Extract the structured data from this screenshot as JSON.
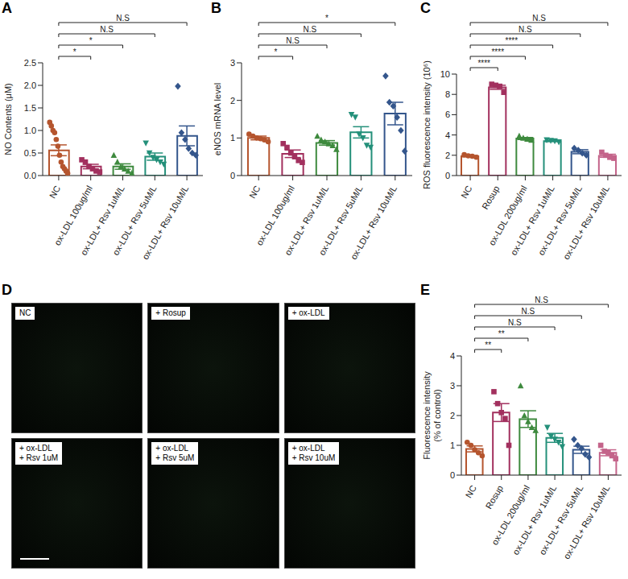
{
  "chart_data": [
    {
      "panel": "A",
      "type": "bar",
      "ylabel": "NO Contents (μM)",
      "categories": [
        "NC",
        "ox-LDL 100ug/ml",
        "ox-LDL+ Rsv 1uM/L",
        "ox-LDL+ Rsv 5uM/L",
        "ox-LDL+ Rsv 10uM/L"
      ],
      "values": [
        0.56,
        0.2,
        0.2,
        0.42,
        0.88
      ],
      "errors": [
        0.12,
        0.05,
        0.06,
        0.08,
        0.22
      ],
      "points": [
        [
          1.18,
          1.1,
          1.0,
          0.95,
          0.8,
          0.65,
          0.45,
          0.3,
          0.2,
          0.15,
          0.1,
          0.05
        ],
        [
          0.35,
          0.3,
          0.2,
          0.15,
          0.1,
          0.08
        ],
        [
          0.45,
          0.3,
          0.2,
          0.15,
          0.1,
          0.05
        ],
        [
          0.72,
          0.5,
          0.4,
          0.35,
          0.3,
          0.25
        ],
        [
          1.98,
          0.95,
          0.8,
          0.6,
          0.5,
          0.45
        ]
      ],
      "colors": [
        "#B5552E",
        "#A2305E",
        "#3E8A3E",
        "#24907A",
        "#34568C"
      ],
      "marker": [
        "circle",
        "square",
        "triangle",
        "triangle-down",
        "diamond"
      ],
      "comparisons": [
        {
          "pair": [
            0,
            1
          ],
          "label": "*"
        },
        {
          "pair": [
            0,
            2
          ],
          "label": "*"
        },
        {
          "pair": [
            0,
            3
          ],
          "label": "N.S"
        },
        {
          "pair": [
            0,
            4
          ],
          "label": "N.S"
        }
      ],
      "ylim": [
        0,
        2.5
      ],
      "yticks": [
        {
          "value": 0,
          "label": "0.0"
        },
        0.5,
        {
          "value": 1,
          "label": "1.0"
        },
        1.5,
        {
          "value": 2,
          "label": "2.0"
        },
        2.5
      ]
    },
    {
      "panel": "B",
      "type": "bar",
      "ylabel": "eNOS mRNA level",
      "categories": [
        "NC",
        "ox-LDL 100ug/ml",
        "ox-LDL+ Rsv 1uM/L",
        "ox-LDL+ Rsv 5uM/L",
        "ox-LDL+ Rsv 10uM/L"
      ],
      "values": [
        1.0,
        0.58,
        0.87,
        1.15,
        1.65
      ],
      "errors": [
        0.05,
        0.1,
        0.06,
        0.15,
        0.3
      ],
      "points": [
        [
          1.1,
          1.05,
          1.0,
          0.98,
          0.95,
          0.9
        ],
        [
          0.85,
          0.75,
          0.6,
          0.5,
          0.4,
          0.35
        ],
        [
          1.05,
          0.95,
          0.9,
          0.85,
          0.8,
          0.7
        ],
        [
          1.62,
          1.55,
          1.1,
          1.0,
          0.8,
          0.75
        ],
        [
          2.65,
          1.95,
          1.85,
          1.55,
          1.2,
          0.65
        ]
      ],
      "colors": [
        "#B5552E",
        "#A2305E",
        "#3E8A3E",
        "#24907A",
        "#34568C"
      ],
      "marker": [
        "circle",
        "square",
        "triangle",
        "triangle-down",
        "diamond"
      ],
      "comparisons": [
        {
          "pair": [
            0,
            1
          ],
          "label": "*"
        },
        {
          "pair": [
            0,
            2
          ],
          "label": "N.S"
        },
        {
          "pair": [
            0,
            3
          ],
          "label": "N.S"
        },
        {
          "pair": [
            0,
            4
          ],
          "label": "*"
        }
      ],
      "ylim": [
        0,
        3
      ],
      "yticks": [
        0,
        1,
        2,
        3
      ]
    },
    {
      "panel": "C",
      "type": "bar",
      "ylabel": "ROS fluorescence intensity (10⁶)",
      "categories": [
        "NC",
        "Rosup",
        "ox-LDL 200ug/ml",
        "ox-LDL+ Rsv 1uM/L",
        "ox-LDL+ Rsv 5uM/L",
        "ox-LDL+ Rsv 10uM/L"
      ],
      "values": [
        1.9,
        8.7,
        3.65,
        3.4,
        2.35,
        1.95
      ],
      "errors": [
        0.06,
        0.2,
        0.1,
        0.05,
        0.2,
        0.15
      ],
      "points": [
        [
          2.05,
          1.95,
          1.9,
          1.8
        ],
        [
          9.0,
          8.9,
          8.8,
          8.2
        ],
        [
          3.9,
          3.7,
          3.6,
          3.5
        ],
        [
          3.5,
          3.45,
          3.4,
          3.3
        ],
        [
          2.7,
          2.5,
          2.2,
          2.0
        ],
        [
          2.3,
          2.0,
          1.8,
          1.7
        ]
      ],
      "colors": [
        "#B5552E",
        "#A2305E",
        "#3E8A3E",
        "#24907A",
        "#34568C",
        "#C4648A"
      ],
      "marker": [
        "circle",
        "square",
        "triangle",
        "triangle-down",
        "diamond",
        "square"
      ],
      "comparisons": [
        {
          "pair": [
            0,
            1
          ],
          "label": "****"
        },
        {
          "pair": [
            0,
            2
          ],
          "label": "****"
        },
        {
          "pair": [
            0,
            3
          ],
          "label": "****"
        },
        {
          "pair": [
            0,
            4
          ],
          "label": "N.S"
        },
        {
          "pair": [
            0,
            5
          ],
          "label": "N.S"
        }
      ],
      "ylim": [
        0,
        10
      ],
      "yticks": [
        0,
        2,
        4,
        6,
        8,
        10
      ]
    },
    {
      "panel": "E",
      "type": "bar",
      "ylabel": [
        "Fluorescence intensity",
        "(% of control)"
      ],
      "categories": [
        "NC",
        "Rosup",
        "ox-LDL 200ug/ml",
        "ox-LDL+ Rsv 1uM/L",
        "ox-LDL+ Rsv 5uM/L",
        "ox-LDL+ Rsv 10uM/L"
      ],
      "values": [
        0.88,
        2.1,
        1.88,
        1.25,
        0.85,
        0.75
      ],
      "errors": [
        0.1,
        0.3,
        0.28,
        0.15,
        0.12,
        0.1
      ],
      "points": [
        [
          1.1,
          1.0,
          0.85,
          0.75,
          0.65
        ],
        [
          2.8,
          2.4,
          2.1,
          1.9,
          1.0
        ],
        [
          3.0,
          2.0,
          1.8,
          1.6,
          1.5
        ],
        [
          1.6,
          1.3,
          1.2,
          1.1,
          0.95
        ],
        [
          1.2,
          1.0,
          0.9,
          0.7,
          0.6
        ],
        [
          1.0,
          0.8,
          0.75,
          0.65,
          0.55
        ]
      ],
      "colors": [
        "#B5552E",
        "#A2305E",
        "#3E8A3E",
        "#24907A",
        "#34568C",
        "#C4648A"
      ],
      "marker": [
        "circle",
        "square",
        "triangle",
        "triangle-down",
        "diamond",
        "square"
      ],
      "comparisons": [
        {
          "pair": [
            0,
            1
          ],
          "label": "**"
        },
        {
          "pair": [
            0,
            2
          ],
          "label": "**"
        },
        {
          "pair": [
            0,
            3
          ],
          "label": "N.S"
        },
        {
          "pair": [
            0,
            4
          ],
          "label": "N.S"
        },
        {
          "pair": [
            0,
            5
          ],
          "label": "N.S"
        }
      ],
      "ylim": [
        0,
        4
      ],
      "yticks": [
        0,
        1,
        2,
        3,
        4
      ]
    }
  ],
  "image_panel": {
    "panel": "D",
    "tiles": [
      [
        "NC"
      ],
      [
        "+ Rosup"
      ],
      [
        "+ ox-LDL"
      ],
      [
        "+ ox-LDL",
        "+ Rsv 1uM"
      ],
      [
        "+ ox-LDL",
        "+ Rsv 5uM"
      ],
      [
        "+ ox-LDL",
        "+ Rsv 10uM"
      ]
    ]
  }
}
